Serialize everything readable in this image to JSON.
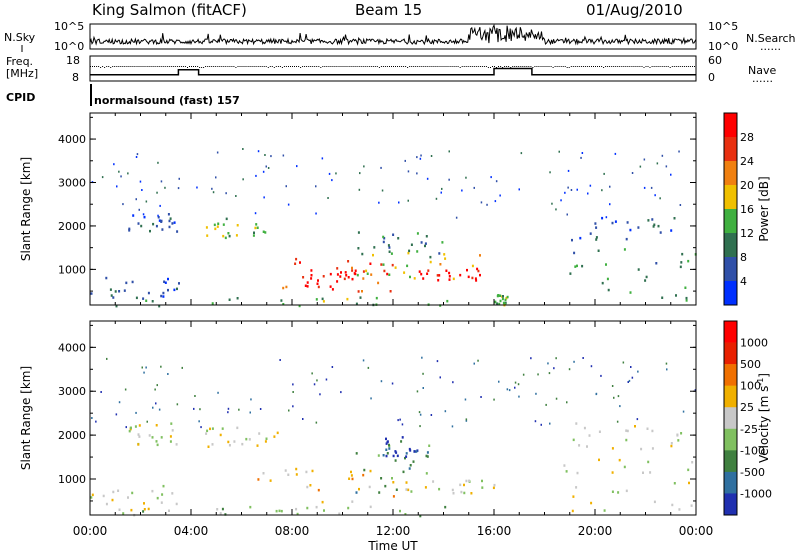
{
  "header": {
    "station": "King Salmon (fitACF)",
    "beam": "Beam 15",
    "date": "01/Aug/2010"
  },
  "summary_panels": {
    "nsky_label": "N.Sky",
    "nsky_ticks": [
      "10^5",
      "10^0"
    ],
    "nsearch_label": "N.Search",
    "nsearch_ticks": [
      "10^5",
      "10^0"
    ],
    "freq_label": "Freq.",
    "freq_unit": "[MHz]",
    "freq_ticks": [
      "18",
      "8"
    ],
    "nave_label": "Nave",
    "nave_ticks": [
      "60",
      "0"
    ],
    "cpid_label": "CPID",
    "cpid_text": "normalsound (fast) 157",
    "dotted_legend": "......",
    "freq_switch_hours": [
      3.5,
      4.3,
      16.0,
      17.5
    ],
    "freq_values": [
      10.5,
      12.5,
      10.5,
      13.0,
      10.5
    ]
  },
  "chart_data": [
    {
      "type": "heatmap",
      "name_note": "power panel",
      "xlabel": "",
      "ylabel": "Slant Range [km]",
      "x_ticks": [
        "00:00",
        "04:00",
        "08:00",
        "12:00",
        "16:00",
        "20:00",
        "00:00"
      ],
      "x_range": [
        0,
        24
      ],
      "y_ticks": [
        "1000",
        "2000",
        "3000",
        "4000"
      ],
      "ylim": [
        180,
        4600
      ],
      "colorbar": {
        "label": "Power [dB]",
        "ticks": [
          "4",
          "8",
          "12",
          "16",
          "20",
          "24",
          "28"
        ],
        "colors": [
          "#0030ff",
          "#3050a8",
          "#307050",
          "#40b040",
          "#f0c000",
          "#f08010",
          "#e83010",
          "#ff0000"
        ]
      },
      "scatter_regions": [
        {
          "t0": 0.0,
          "t1": 3.5,
          "r0": 300,
          "r1": 900,
          "level": 1
        },
        {
          "t0": 1.5,
          "t1": 3.5,
          "r0": 1800,
          "r1": 2300,
          "level": 1
        },
        {
          "t0": 4.2,
          "t1": 7.5,
          "r0": 1750,
          "r1": 2200,
          "level": 3
        },
        {
          "t0": 6.5,
          "t1": 12.0,
          "r0": 500,
          "r1": 1300,
          "level": 6
        },
        {
          "t0": 8.5,
          "t1": 10.5,
          "r0": 600,
          "r1": 1100,
          "level": 7
        },
        {
          "t0": 10.5,
          "t1": 15.5,
          "r0": 800,
          "r1": 1500,
          "level": 4
        },
        {
          "t0": 13.0,
          "t1": 15.5,
          "r0": 750,
          "r1": 1050,
          "level": 7
        },
        {
          "t0": 10.5,
          "t1": 14.0,
          "r0": 1300,
          "r1": 1900,
          "level": 2
        },
        {
          "t0": 16.0,
          "t1": 16.5,
          "r0": 200,
          "r1": 450,
          "level": 3
        },
        {
          "t0": 18.5,
          "t1": 24.0,
          "r0": 300,
          "r1": 1500,
          "level": 2
        },
        {
          "t0": 19.0,
          "t1": 23.5,
          "r0": 1700,
          "r1": 2300,
          "level": 1
        },
        {
          "t0": 1.0,
          "t1": 15.0,
          "r0": 180,
          "r1": 400,
          "level": 3
        }
      ]
    },
    {
      "type": "heatmap",
      "name_note": "velocity panel",
      "xlabel": "Time UT",
      "ylabel": "Slant Range [km]",
      "x_ticks": [
        "00:00",
        "04:00",
        "08:00",
        "12:00",
        "16:00",
        "20:00",
        "00:00"
      ],
      "x_range": [
        0,
        24
      ],
      "y_ticks": [
        "1000",
        "2000",
        "3000",
        "4000"
      ],
      "ylim": [
        180,
        4600
      ],
      "colorbar": {
        "label": "Velocity [m s",
        "label_sup": "-1",
        "label_end": "]",
        "ticks": [
          "1000",
          "500",
          "100",
          "25",
          "-25",
          "-100",
          "-500",
          "-1000"
        ],
        "colors": [
          "#2030b0",
          "#3070a0",
          "#408040",
          "#80c060",
          "#c8c8c8",
          "#f0b000",
          "#f07000",
          "#e82000",
          "#ff0000"
        ]
      },
      "scatter_regions": [
        {
          "t0": 0.0,
          "t1": 3.5,
          "r0": 300,
          "r1": 900,
          "level": 4
        },
        {
          "t0": 1.5,
          "t1": 3.5,
          "r0": 1800,
          "r1": 2300,
          "level": 4
        },
        {
          "t0": 4.2,
          "t1": 7.5,
          "r0": 1750,
          "r1": 2200,
          "level": 4
        },
        {
          "t0": 6.5,
          "t1": 12.0,
          "r0": 500,
          "r1": 1300,
          "level": 5
        },
        {
          "t0": 10.5,
          "t1": 14.0,
          "r0": 700,
          "r1": 1900,
          "level": 2
        },
        {
          "t0": 11.5,
          "t1": 13.0,
          "r0": 1500,
          "r1": 2000,
          "level": 0
        },
        {
          "t0": 12.0,
          "t1": 16.0,
          "r0": 700,
          "r1": 1000,
          "level": 4
        },
        {
          "t0": 18.5,
          "t1": 24.0,
          "r0": 300,
          "r1": 1500,
          "level": 4
        },
        {
          "t0": 19.0,
          "t1": 23.5,
          "r0": 1700,
          "r1": 2300,
          "level": 4
        },
        {
          "t0": 1.0,
          "t1": 15.0,
          "r0": 180,
          "r1": 400,
          "level": 3
        }
      ]
    }
  ]
}
